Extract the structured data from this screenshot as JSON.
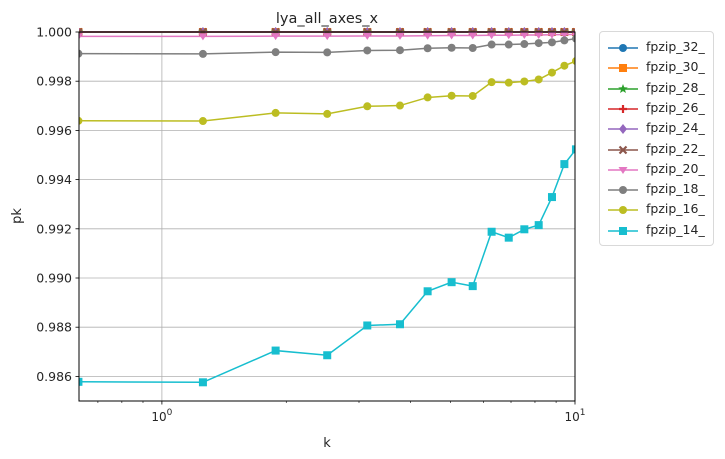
{
  "chart_data": {
    "type": "line",
    "title": "lya_all_axes_x",
    "xlabel": "k",
    "ylabel": "pk",
    "xscale": "log",
    "xlim": [
      0.63,
      10
    ],
    "ylim": [
      0.985,
      1.0
    ],
    "x_tick_labels": [
      "10^0",
      "10^1"
    ],
    "x_ticks": [
      1,
      10
    ],
    "y_ticks": [
      0.986,
      0.988,
      0.99,
      0.992,
      0.994,
      0.996,
      0.998,
      1.0
    ],
    "y_tick_labels": [
      "0.986",
      "0.988",
      "0.990",
      "0.992",
      "0.994",
      "0.996",
      "0.998",
      "1.000"
    ],
    "grid": true,
    "legend_position": "outside-right",
    "x": [
      0.628,
      1.257,
      1.885,
      2.513,
      3.142,
      3.77,
      4.398,
      5.027,
      5.655,
      6.283,
      6.912,
      7.54,
      8.168,
      8.796,
      9.425,
      10.053
    ],
    "series": [
      {
        "name": "fpzip_32_",
        "color": "#1f77b4",
        "marker": "circle",
        "values": [
          1.0,
          1.0,
          1.0,
          1.0,
          1.0,
          1.0,
          1.0,
          1.0,
          1.0,
          1.0,
          1.0,
          1.0,
          1.0,
          1.0,
          1.0,
          1.0
        ]
      },
      {
        "name": "fpzip_30_",
        "color": "#ff7f0e",
        "marker": "square",
        "values": [
          1.0,
          1.0,
          1.0,
          1.0,
          1.0,
          1.0,
          1.0,
          1.0,
          1.0,
          1.0,
          1.0,
          1.0,
          1.0,
          1.0,
          1.0,
          1.0
        ]
      },
      {
        "name": "fpzip_28_",
        "color": "#2ca02c",
        "marker": "star",
        "values": [
          1.0,
          1.0,
          1.0,
          1.0,
          1.0,
          1.0,
          1.0,
          1.0,
          1.0,
          1.0,
          1.0,
          1.0,
          1.0,
          1.0,
          1.0,
          1.0
        ]
      },
      {
        "name": "fpzip_26_",
        "color": "#d62728",
        "marker": "plus",
        "values": [
          1.0,
          1.0,
          1.0,
          1.0,
          1.0,
          1.0,
          1.0,
          1.0,
          1.0,
          1.0,
          1.0,
          1.0,
          1.0,
          1.0,
          1.0,
          1.0
        ]
      },
      {
        "name": "fpzip_24_",
        "color": "#9467bd",
        "marker": "diamond",
        "values": [
          1.0,
          1.0,
          1.0,
          1.0,
          1.0,
          1.0,
          1.0,
          1.0,
          1.0,
          1.0,
          1.0,
          1.0,
          1.0,
          1.0,
          1.0,
          1.0
        ]
      },
      {
        "name": "fpzip_22_",
        "color": "#8c564b",
        "marker": "x",
        "values": [
          1.0,
          1.0,
          1.0,
          1.0,
          1.0,
          1.0,
          1.0,
          1.0,
          1.0,
          1.0,
          1.0,
          1.0,
          1.0,
          1.0,
          1.0,
          1.0
        ]
      },
      {
        "name": "fpzip_20_",
        "color": "#e377c2",
        "marker": "triangle-down",
        "values": [
          0.99982,
          0.99982,
          0.99983,
          0.99983,
          0.99984,
          0.99984,
          0.99985,
          0.99986,
          0.99986,
          0.99987,
          0.99987,
          0.99988,
          0.99988,
          0.99989,
          0.9999,
          0.9999
        ]
      },
      {
        "name": "fpzip_18_",
        "color": "#7f7f7f",
        "marker": "circle",
        "values": [
          0.99912,
          0.99911,
          0.99918,
          0.99917,
          0.99925,
          0.99926,
          0.99934,
          0.99936,
          0.99935,
          0.99949,
          0.99949,
          0.99951,
          0.99955,
          0.99958,
          0.99966,
          0.99973
        ]
      },
      {
        "name": "fpzip_16_",
        "color": "#bcbd22",
        "marker": "circle",
        "values": [
          0.99639,
          0.99638,
          0.99671,
          0.99667,
          0.99698,
          0.99701,
          0.99734,
          0.99741,
          0.9974,
          0.99796,
          0.99794,
          0.99799,
          0.99807,
          0.99835,
          0.99863,
          0.99882
        ]
      },
      {
        "name": "fpzip_14_",
        "color": "#17becf",
        "marker": "square",
        "values": [
          0.98578,
          0.98576,
          0.98705,
          0.98686,
          0.98807,
          0.98812,
          0.98946,
          0.98983,
          0.98967,
          0.99188,
          0.99164,
          0.99198,
          0.99215,
          0.99329,
          0.99463,
          0.99523
        ]
      }
    ]
  }
}
